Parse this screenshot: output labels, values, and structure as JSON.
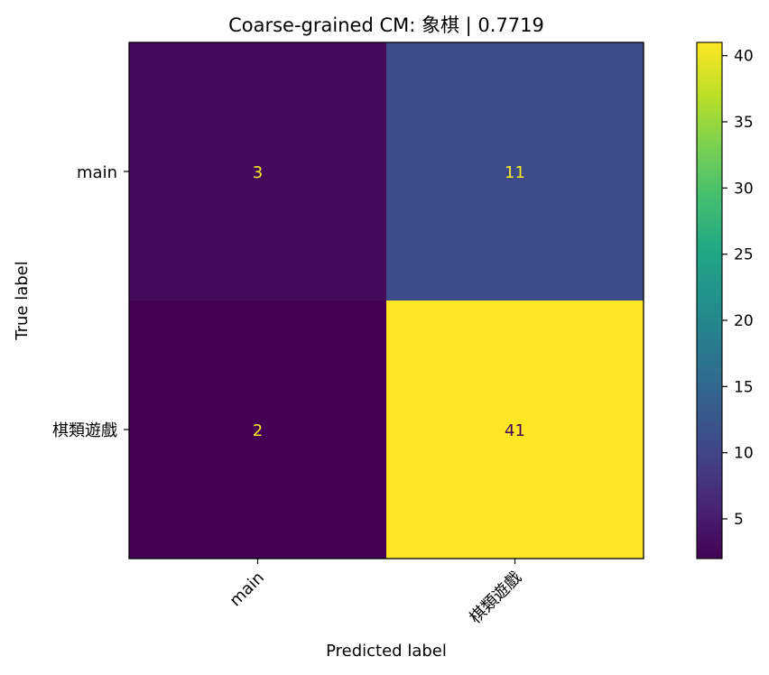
{
  "chart_data": {
    "type": "heatmap",
    "title": "Coarse-grained CM: 象棋 | 0.7719",
    "xlabel": "Predicted label",
    "ylabel": "True label",
    "x_categories": [
      "main",
      "棋類遊戲"
    ],
    "y_categories": [
      "main",
      "棋類遊戲"
    ],
    "values": [
      [
        3,
        11
      ],
      [
        2,
        41
      ]
    ],
    "colormap": "viridis",
    "colorbar": {
      "min": 2,
      "max": 41,
      "ticks": [
        5,
        10,
        15,
        20,
        25,
        30,
        35,
        40
      ]
    },
    "annotation_colors": {
      "on_dark": "#fde725",
      "on_light": "#440154"
    }
  }
}
